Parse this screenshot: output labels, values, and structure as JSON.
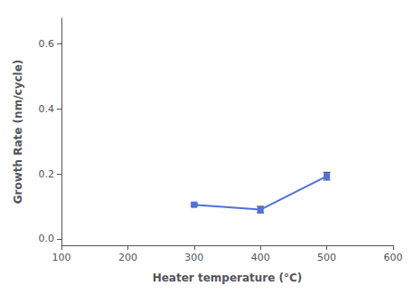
{
  "chart_data": {
    "type": "line",
    "x": [
      300,
      400,
      500
    ],
    "values": [
      0.105,
      0.09,
      0.193
    ],
    "yerr": [
      0.004,
      0.01,
      0.012
    ],
    "marker": "square",
    "xlabel": "Heater temperature (°C)",
    "ylabel": "Growth Rate (nm/cycle)",
    "xlim": [
      100,
      600
    ],
    "ylim": [
      -0.02,
      0.68
    ],
    "xticks": [
      100,
      200,
      300,
      400,
      500,
      600
    ],
    "yticks": [
      {
        "value": 0.0,
        "label": "0.0"
      },
      0.2,
      0.4,
      0.6
    ],
    "grid": false
  }
}
